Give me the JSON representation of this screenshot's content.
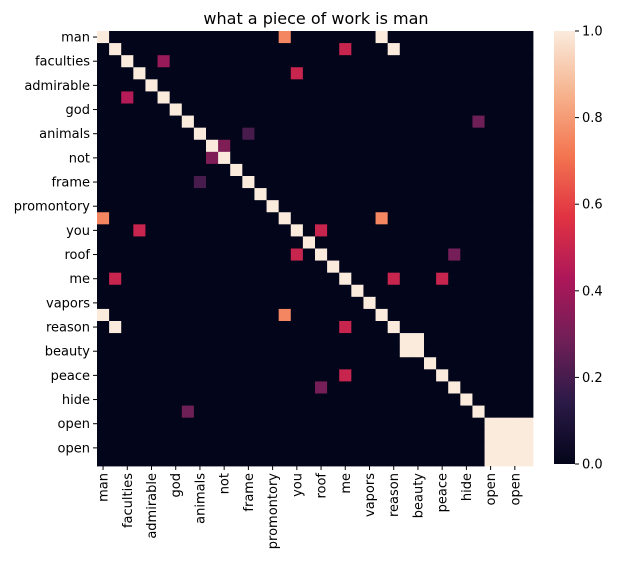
{
  "chart_data": {
    "type": "heatmap",
    "title": "what a piece of work is man",
    "row_labels": [
      "man",
      "",
      "faculties",
      "",
      "admirable",
      "",
      "god",
      "",
      "animals",
      "",
      "not",
      "",
      "frame",
      "",
      "promontory",
      "",
      "you",
      "",
      "roof",
      "",
      "me",
      "",
      "vapors",
      "",
      "reason",
      "",
      "beauty",
      "",
      "peace",
      "",
      "hide",
      "",
      "open",
      "",
      "open",
      ""
    ],
    "col_labels": [
      "man",
      "",
      "faculties",
      "",
      "admirable",
      "",
      "god",
      "",
      "animals",
      "",
      "not",
      "",
      "frame",
      "",
      "promontory",
      "",
      "you",
      "",
      "roof",
      "",
      "me",
      "",
      "vapors",
      "",
      "reason",
      "",
      "beauty",
      "",
      "peace",
      "",
      "hide",
      "",
      "open",
      "",
      "open",
      ""
    ],
    "n": 36,
    "cells": [
      {
        "r": 0,
        "c": 0,
        "v": 1.0
      },
      {
        "r": 0,
        "c": 15,
        "v": 0.75
      },
      {
        "r": 0,
        "c": 23,
        "v": 1.0
      },
      {
        "r": 1,
        "c": 1,
        "v": 1.0
      },
      {
        "r": 1,
        "c": 20,
        "v": 0.5
      },
      {
        "r": 1,
        "c": 24,
        "v": 1.0
      },
      {
        "r": 2,
        "c": 2,
        "v": 1.0
      },
      {
        "r": 2,
        "c": 5,
        "v": 0.38
      },
      {
        "r": 3,
        "c": 3,
        "v": 1.0
      },
      {
        "r": 3,
        "c": 16,
        "v": 0.5
      },
      {
        "r": 4,
        "c": 4,
        "v": 1.0
      },
      {
        "r": 5,
        "c": 2,
        "v": 0.45
      },
      {
        "r": 5,
        "c": 5,
        "v": 1.0
      },
      {
        "r": 6,
        "c": 6,
        "v": 1.0
      },
      {
        "r": 7,
        "c": 7,
        "v": 1.0
      },
      {
        "r": 7,
        "c": 31,
        "v": 0.28
      },
      {
        "r": 8,
        "c": 8,
        "v": 1.0
      },
      {
        "r": 8,
        "c": 12,
        "v": 0.2
      },
      {
        "r": 9,
        "c": 9,
        "v": 1.0
      },
      {
        "r": 9,
        "c": 10,
        "v": 0.32
      },
      {
        "r": 10,
        "c": 9,
        "v": 0.32
      },
      {
        "r": 10,
        "c": 10,
        "v": 1.0
      },
      {
        "r": 11,
        "c": 11,
        "v": 1.0
      },
      {
        "r": 12,
        "c": 8,
        "v": 0.2
      },
      {
        "r": 12,
        "c": 12,
        "v": 1.0
      },
      {
        "r": 13,
        "c": 13,
        "v": 1.0
      },
      {
        "r": 14,
        "c": 14,
        "v": 1.0
      },
      {
        "r": 15,
        "c": 0,
        "v": 0.75
      },
      {
        "r": 15,
        "c": 15,
        "v": 1.0
      },
      {
        "r": 15,
        "c": 23,
        "v": 0.75
      },
      {
        "r": 16,
        "c": 3,
        "v": 0.5
      },
      {
        "r": 16,
        "c": 16,
        "v": 1.0
      },
      {
        "r": 16,
        "c": 18,
        "v": 0.5
      },
      {
        "r": 17,
        "c": 17,
        "v": 1.0
      },
      {
        "r": 18,
        "c": 16,
        "v": 0.5
      },
      {
        "r": 18,
        "c": 18,
        "v": 1.0
      },
      {
        "r": 18,
        "c": 29,
        "v": 0.3
      },
      {
        "r": 19,
        "c": 19,
        "v": 1.0
      },
      {
        "r": 20,
        "c": 1,
        "v": 0.5
      },
      {
        "r": 20,
        "c": 20,
        "v": 1.0
      },
      {
        "r": 20,
        "c": 24,
        "v": 0.5
      },
      {
        "r": 20,
        "c": 28,
        "v": 0.5
      },
      {
        "r": 21,
        "c": 21,
        "v": 1.0
      },
      {
        "r": 22,
        "c": 22,
        "v": 1.0
      },
      {
        "r": 23,
        "c": 0,
        "v": 1.0
      },
      {
        "r": 23,
        "c": 15,
        "v": 0.75
      },
      {
        "r": 23,
        "c": 23,
        "v": 1.0
      },
      {
        "r": 24,
        "c": 1,
        "v": 1.0
      },
      {
        "r": 24,
        "c": 20,
        "v": 0.5
      },
      {
        "r": 24,
        "c": 24,
        "v": 1.0
      },
      {
        "r": 25,
        "c": 25,
        "v": 1.0
      },
      {
        "r": 25,
        "c": 26,
        "v": 1.0
      },
      {
        "r": 26,
        "c": 25,
        "v": 1.0
      },
      {
        "r": 26,
        "c": 26,
        "v": 1.0
      },
      {
        "r": 27,
        "c": 27,
        "v": 1.0
      },
      {
        "r": 28,
        "c": 20,
        "v": 0.5
      },
      {
        "r": 28,
        "c": 28,
        "v": 1.0
      },
      {
        "r": 29,
        "c": 18,
        "v": 0.3
      },
      {
        "r": 29,
        "c": 29,
        "v": 1.0
      },
      {
        "r": 30,
        "c": 30,
        "v": 1.0
      },
      {
        "r": 31,
        "c": 7,
        "v": 0.28
      },
      {
        "r": 31,
        "c": 31,
        "v": 1.0
      },
      {
        "r": 32,
        "c": 32,
        "v": 1.0
      },
      {
        "r": 32,
        "c": 33,
        "v": 1.0
      },
      {
        "r": 32,
        "c": 34,
        "v": 1.0
      },
      {
        "r": 32,
        "c": 35,
        "v": 1.0
      },
      {
        "r": 33,
        "c": 32,
        "v": 1.0
      },
      {
        "r": 33,
        "c": 33,
        "v": 1.0
      },
      {
        "r": 33,
        "c": 34,
        "v": 1.0
      },
      {
        "r": 33,
        "c": 35,
        "v": 1.0
      },
      {
        "r": 34,
        "c": 32,
        "v": 1.0
      },
      {
        "r": 34,
        "c": 33,
        "v": 1.0
      },
      {
        "r": 34,
        "c": 34,
        "v": 1.0
      },
      {
        "r": 34,
        "c": 35,
        "v": 1.0
      },
      {
        "r": 35,
        "c": 32,
        "v": 1.0
      },
      {
        "r": 35,
        "c": 33,
        "v": 1.0
      },
      {
        "r": 35,
        "c": 34,
        "v": 1.0
      },
      {
        "r": 35,
        "c": 35,
        "v": 1.0
      }
    ],
    "colorbar": {
      "range": [
        0.0,
        1.0
      ],
      "ticks": [
        "0.0",
        "0.2",
        "0.4",
        "0.6",
        "0.8",
        "1.0"
      ],
      "colormap": "rocket",
      "stops": [
        "#03051a",
        "#2b1a47",
        "#701f57",
        "#ad1759",
        "#e13342",
        "#f37651",
        "#f6b48f",
        "#faebdd"
      ]
    },
    "grid": false,
    "legend": "colorbar-right"
  }
}
